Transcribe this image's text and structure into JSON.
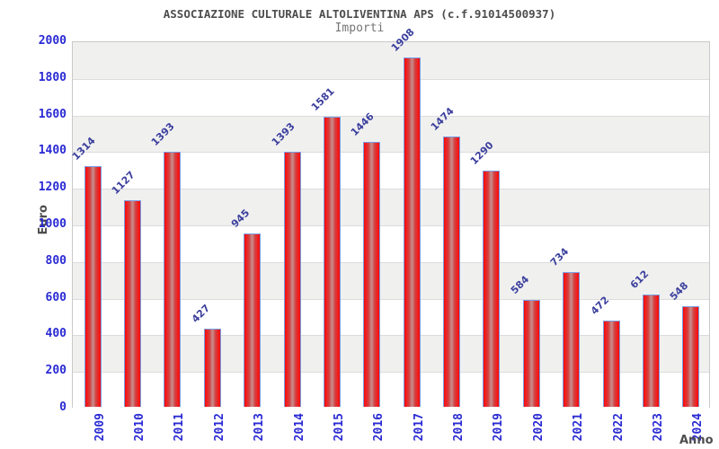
{
  "chart_data": {
    "type": "bar",
    "title": "ASSOCIAZIONE CULTURALE ALTOLIVENTINA APS (c.f.91014500937)",
    "subtitle": "Importi",
    "xlabel": "Anno",
    "ylabel": "Euro",
    "categories": [
      "2009",
      "2010",
      "2011",
      "2012",
      "2013",
      "2014",
      "2015",
      "2016",
      "2017",
      "2018",
      "2019",
      "2020",
      "2021",
      "2022",
      "2023",
      "2024"
    ],
    "values": [
      1314,
      1127,
      1393,
      427,
      945,
      1393,
      1581,
      1446,
      1908,
      1474,
      1290,
      584,
      734,
      472,
      612,
      548
    ],
    "ylim": [
      0,
      2000
    ],
    "yticks": [
      0,
      200,
      400,
      600,
      800,
      1000,
      1200,
      1400,
      1600,
      1800,
      2000
    ],
    "ytick_step": 200,
    "grid": "alternating horizontal gray/white bands every 200 units with thin gridlines",
    "legend_position": "none",
    "bar_value_labels": "rotated 45 degrees above each bar",
    "x_tick_label_rotation": "vertical (reads bottom to top)",
    "colors": {
      "bar_edge": "#e01010",
      "bar_bright": "#fa1515",
      "bar_mid": "#d24040",
      "bar_center": "#c98f8f",
      "bar_border": "#7b9de2",
      "axis_tick_blue": "#2a2ad4",
      "value_label_blue": "#3b3f9d",
      "band_gray": "#f0f0ef",
      "band_white": "#ffffff",
      "gridline": "#dcdcdc",
      "plot_border": "#c9c9c9",
      "title_color": "#4d4d4d",
      "subtitle_color": "#757575",
      "axis_title_color": "#4d4d4d"
    }
  }
}
